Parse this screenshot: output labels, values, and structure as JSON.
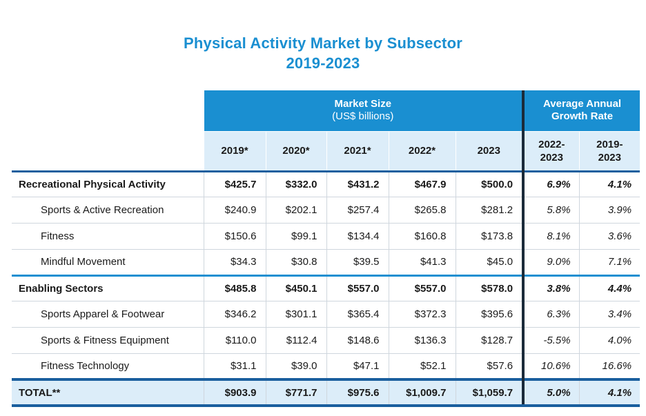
{
  "title": {
    "line1": "Physical Activity Market by Subsector",
    "line2": "2019-2023"
  },
  "header": {
    "market_size_label": "Market Size",
    "market_size_unit": "(US$ billions)",
    "growth_label_line1": "Average Annual",
    "growth_label_line2": "Growth Rate",
    "years": [
      "2019*",
      "2020*",
      "2021*",
      "2022*",
      "2023"
    ],
    "growth_periods": [
      {
        "line1": "2022-",
        "line2": "2023"
      },
      {
        "line1": "2019-",
        "line2": "2023"
      }
    ]
  },
  "rows": [
    {
      "label": "Recreational Physical Activity",
      "values": [
        "$425.7",
        "$332.0",
        "$431.2",
        "$467.9",
        "$500.0"
      ],
      "growth": [
        "6.9%",
        "4.1%"
      ]
    },
    {
      "label": "Sports & Active Recreation",
      "values": [
        "$240.9",
        "$202.1",
        "$257.4",
        "$265.8",
        "$281.2"
      ],
      "growth": [
        "5.8%",
        "3.9%"
      ]
    },
    {
      "label": "Fitness",
      "values": [
        "$150.6",
        "$99.1",
        "$134.4",
        "$160.8",
        "$173.8"
      ],
      "growth": [
        "8.1%",
        "3.6%"
      ]
    },
    {
      "label": "Mindful Movement",
      "values": [
        "$34.3",
        "$30.8",
        "$39.5",
        "$41.3",
        "$45.0"
      ],
      "growth": [
        "9.0%",
        "7.1%"
      ]
    },
    {
      "label": "Enabling Sectors",
      "values": [
        "$485.8",
        "$450.1",
        "$557.0",
        "$557.0",
        "$578.0"
      ],
      "growth": [
        "3.8%",
        "4.4%"
      ]
    },
    {
      "label": "Sports Apparel & Footwear",
      "values": [
        "$346.2",
        "$301.1",
        "$365.4",
        "$372.3",
        "$395.6"
      ],
      "growth": [
        "6.3%",
        "3.4%"
      ]
    },
    {
      "label": "Sports & Fitness Equipment",
      "values": [
        "$110.0",
        "$112.4",
        "$148.6",
        "$136.3",
        "$128.7"
      ],
      "growth": [
        "-5.5%",
        "4.0%"
      ]
    },
    {
      "label": "Fitness Technology",
      "values": [
        "$31.1",
        "$39.0",
        "$47.1",
        "$52.1",
        "$57.6"
      ],
      "growth": [
        "10.6%",
        "16.6%"
      ]
    },
    {
      "label": "TOTAL**",
      "values": [
        "$903.9",
        "$771.7",
        "$975.6",
        "$1,009.7",
        "$1,059.7"
      ],
      "growth": [
        "5.0%",
        "4.1%"
      ]
    }
  ]
}
